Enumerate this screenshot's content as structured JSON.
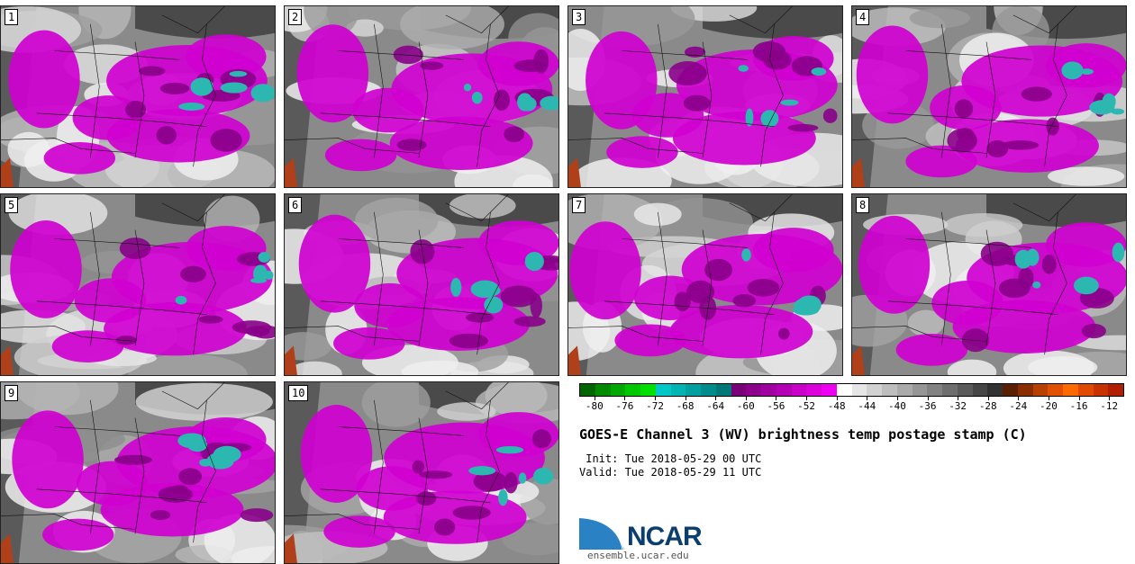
{
  "panels": [
    {
      "label": "1"
    },
    {
      "label": "2"
    },
    {
      "label": "3"
    },
    {
      "label": "4"
    },
    {
      "label": "5"
    },
    {
      "label": "6"
    },
    {
      "label": "7"
    },
    {
      "label": "8"
    },
    {
      "label": "9"
    },
    {
      "label": "10"
    }
  ],
  "colorbar": {
    "ticks": [
      "-80",
      "-76",
      "-72",
      "-68",
      "-64",
      "-60",
      "-56",
      "-52",
      "-48",
      "-44",
      "-40",
      "-36",
      "-32",
      "-28",
      "-24",
      "-20",
      "-16",
      "-12"
    ],
    "colors": [
      "#006400",
      "#008a00",
      "#00a800",
      "#00c800",
      "#00e000",
      "#00c8c8",
      "#00b4b4",
      "#00a0a0",
      "#008c8c",
      "#007878",
      "#7a007a",
      "#8c008c",
      "#a000a0",
      "#b400b4",
      "#c800c8",
      "#dc00dc",
      "#f000f0",
      "#ffffff",
      "#e6e6e6",
      "#d2d2d2",
      "#bebebe",
      "#aaaaaa",
      "#969696",
      "#828282",
      "#6e6e6e",
      "#5a5a5a",
      "#464646",
      "#323232",
      "#5a1e00",
      "#8a2e00",
      "#b84000",
      "#e05000",
      "#ff6a00",
      "#e04a00",
      "#c83200",
      "#b02000"
    ]
  },
  "title": "GOES-E Channel 3 (WV) brightness temp postage stamp (C)",
  "init": " Init: Tue 2018-05-29 00 UTC",
  "valid": "Valid: Tue 2018-05-29 11 UTC",
  "logo_text": "NCAR",
  "url": "ensemble.ucar.edu"
}
